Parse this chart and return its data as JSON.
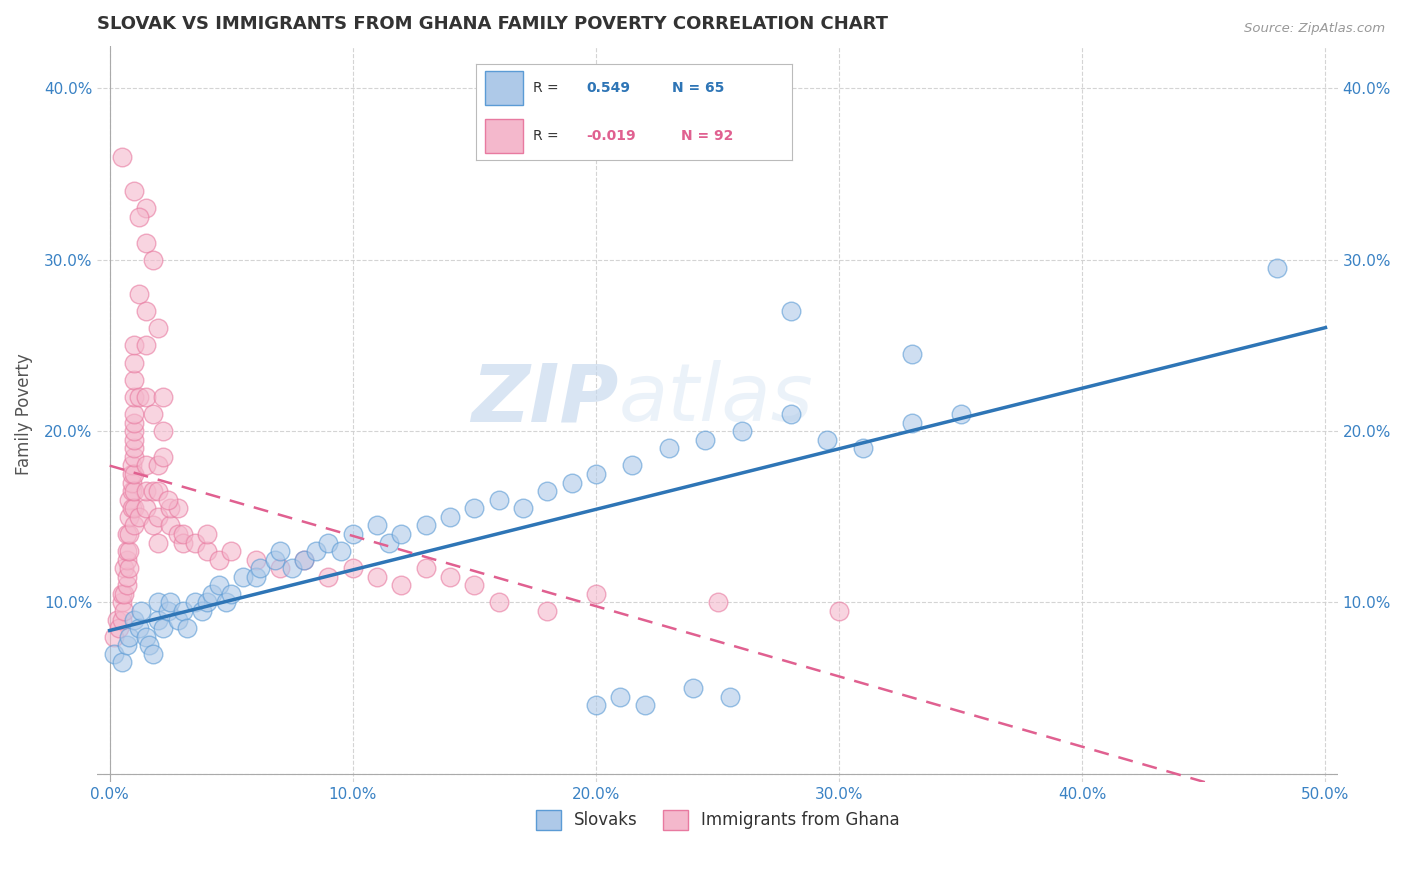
{
  "title": "SLOVAK VS IMMIGRANTS FROM GHANA FAMILY POVERTY CORRELATION CHART",
  "source": "Source: ZipAtlas.com",
  "xlabel_blue": "Slovaks",
  "xlabel_pink": "Immigrants from Ghana",
  "ylabel": "Family Poverty",
  "xlim": [
    -0.005,
    0.505
  ],
  "ylim": [
    -0.005,
    0.425
  ],
  "xticks": [
    0.0,
    0.1,
    0.2,
    0.3,
    0.4,
    0.5
  ],
  "yticks": [
    0.0,
    0.1,
    0.2,
    0.3,
    0.4
  ],
  "ytick_labels_left": [
    "",
    "10.0%",
    "20.0%",
    "30.0%",
    "40.0%"
  ],
  "ytick_labels_right": [
    "",
    "10.0%",
    "20.0%",
    "30.0%",
    "40.0%"
  ],
  "xtick_labels": [
    "0.0%",
    "10.0%",
    "20.0%",
    "30.0%",
    "40.0%",
    "50.0%"
  ],
  "blue_color": "#aec9e8",
  "pink_color": "#f4b8cc",
  "blue_edge_color": "#5b9bd5",
  "pink_edge_color": "#e87aa0",
  "blue_line_color": "#2e75b6",
  "pink_line_color": "#e06090",
  "R_blue": 0.549,
  "N_blue": 65,
  "R_pink": -0.019,
  "N_pink": 92,
  "watermark_zip": "ZIP",
  "watermark_atlas": "atlas",
  "background_color": "#ffffff",
  "grid_color": "#d0d0d0",
  "blue_scatter": [
    [
      0.002,
      0.07
    ],
    [
      0.005,
      0.065
    ],
    [
      0.007,
      0.075
    ],
    [
      0.008,
      0.08
    ],
    [
      0.01,
      0.09
    ],
    [
      0.012,
      0.085
    ],
    [
      0.013,
      0.095
    ],
    [
      0.015,
      0.08
    ],
    [
      0.016,
      0.075
    ],
    [
      0.018,
      0.07
    ],
    [
      0.02,
      0.09
    ],
    [
      0.02,
      0.1
    ],
    [
      0.022,
      0.085
    ],
    [
      0.024,
      0.095
    ],
    [
      0.025,
      0.1
    ],
    [
      0.028,
      0.09
    ],
    [
      0.03,
      0.095
    ],
    [
      0.032,
      0.085
    ],
    [
      0.035,
      0.1
    ],
    [
      0.038,
      0.095
    ],
    [
      0.04,
      0.1
    ],
    [
      0.042,
      0.105
    ],
    [
      0.045,
      0.11
    ],
    [
      0.048,
      0.1
    ],
    [
      0.05,
      0.105
    ],
    [
      0.055,
      0.115
    ],
    [
      0.06,
      0.115
    ],
    [
      0.062,
      0.12
    ],
    [
      0.068,
      0.125
    ],
    [
      0.07,
      0.13
    ],
    [
      0.075,
      0.12
    ],
    [
      0.08,
      0.125
    ],
    [
      0.085,
      0.13
    ],
    [
      0.09,
      0.135
    ],
    [
      0.095,
      0.13
    ],
    [
      0.1,
      0.14
    ],
    [
      0.11,
      0.145
    ],
    [
      0.115,
      0.135
    ],
    [
      0.12,
      0.14
    ],
    [
      0.13,
      0.145
    ],
    [
      0.14,
      0.15
    ],
    [
      0.15,
      0.155
    ],
    [
      0.16,
      0.16
    ],
    [
      0.17,
      0.155
    ],
    [
      0.18,
      0.165
    ],
    [
      0.19,
      0.17
    ],
    [
      0.2,
      0.175
    ],
    [
      0.215,
      0.18
    ],
    [
      0.23,
      0.19
    ],
    [
      0.245,
      0.195
    ],
    [
      0.26,
      0.2
    ],
    [
      0.28,
      0.21
    ],
    [
      0.295,
      0.195
    ],
    [
      0.31,
      0.19
    ],
    [
      0.33,
      0.205
    ],
    [
      0.35,
      0.21
    ],
    [
      0.28,
      0.27
    ],
    [
      0.33,
      0.245
    ],
    [
      0.48,
      0.295
    ],
    [
      0.2,
      0.04
    ],
    [
      0.21,
      0.045
    ],
    [
      0.22,
      0.04
    ],
    [
      0.24,
      0.05
    ],
    [
      0.255,
      0.045
    ]
  ],
  "pink_scatter": [
    [
      0.002,
      0.08
    ],
    [
      0.003,
      0.09
    ],
    [
      0.004,
      0.085
    ],
    [
      0.005,
      0.09
    ],
    [
      0.005,
      0.1
    ],
    [
      0.005,
      0.105
    ],
    [
      0.006,
      0.095
    ],
    [
      0.006,
      0.105
    ],
    [
      0.006,
      0.12
    ],
    [
      0.007,
      0.11
    ],
    [
      0.007,
      0.115
    ],
    [
      0.007,
      0.125
    ],
    [
      0.007,
      0.13
    ],
    [
      0.007,
      0.14
    ],
    [
      0.008,
      0.12
    ],
    [
      0.008,
      0.13
    ],
    [
      0.008,
      0.14
    ],
    [
      0.008,
      0.15
    ],
    [
      0.008,
      0.16
    ],
    [
      0.009,
      0.155
    ],
    [
      0.009,
      0.165
    ],
    [
      0.009,
      0.17
    ],
    [
      0.009,
      0.175
    ],
    [
      0.009,
      0.18
    ],
    [
      0.01,
      0.145
    ],
    [
      0.01,
      0.155
    ],
    [
      0.01,
      0.165
    ],
    [
      0.01,
      0.175
    ],
    [
      0.01,
      0.185
    ],
    [
      0.01,
      0.19
    ],
    [
      0.01,
      0.195
    ],
    [
      0.01,
      0.2
    ],
    [
      0.01,
      0.205
    ],
    [
      0.01,
      0.21
    ],
    [
      0.01,
      0.22
    ],
    [
      0.01,
      0.23
    ],
    [
      0.01,
      0.24
    ],
    [
      0.01,
      0.25
    ],
    [
      0.01,
      0.34
    ],
    [
      0.012,
      0.15
    ],
    [
      0.012,
      0.22
    ],
    [
      0.012,
      0.28
    ],
    [
      0.015,
      0.155
    ],
    [
      0.015,
      0.165
    ],
    [
      0.015,
      0.18
    ],
    [
      0.015,
      0.22
    ],
    [
      0.015,
      0.25
    ],
    [
      0.015,
      0.27
    ],
    [
      0.015,
      0.31
    ],
    [
      0.015,
      0.33
    ],
    [
      0.018,
      0.145
    ],
    [
      0.018,
      0.165
    ],
    [
      0.018,
      0.21
    ],
    [
      0.02,
      0.135
    ],
    [
      0.02,
      0.15
    ],
    [
      0.02,
      0.165
    ],
    [
      0.02,
      0.18
    ],
    [
      0.022,
      0.2
    ],
    [
      0.022,
      0.22
    ],
    [
      0.025,
      0.145
    ],
    [
      0.025,
      0.155
    ],
    [
      0.028,
      0.14
    ],
    [
      0.028,
      0.155
    ],
    [
      0.03,
      0.135
    ],
    [
      0.03,
      0.14
    ],
    [
      0.035,
      0.135
    ],
    [
      0.04,
      0.13
    ],
    [
      0.04,
      0.14
    ],
    [
      0.045,
      0.125
    ],
    [
      0.05,
      0.13
    ],
    [
      0.06,
      0.125
    ],
    [
      0.07,
      0.12
    ],
    [
      0.08,
      0.125
    ],
    [
      0.09,
      0.115
    ],
    [
      0.1,
      0.12
    ],
    [
      0.11,
      0.115
    ],
    [
      0.12,
      0.11
    ],
    [
      0.13,
      0.12
    ],
    [
      0.14,
      0.115
    ],
    [
      0.15,
      0.11
    ],
    [
      0.2,
      0.105
    ],
    [
      0.25,
      0.1
    ],
    [
      0.3,
      0.095
    ],
    [
      0.16,
      0.1
    ],
    [
      0.18,
      0.095
    ],
    [
      0.005,
      0.36
    ],
    [
      0.02,
      0.26
    ],
    [
      0.018,
      0.3
    ],
    [
      0.012,
      0.325
    ],
    [
      0.022,
      0.185
    ],
    [
      0.024,
      0.16
    ]
  ]
}
